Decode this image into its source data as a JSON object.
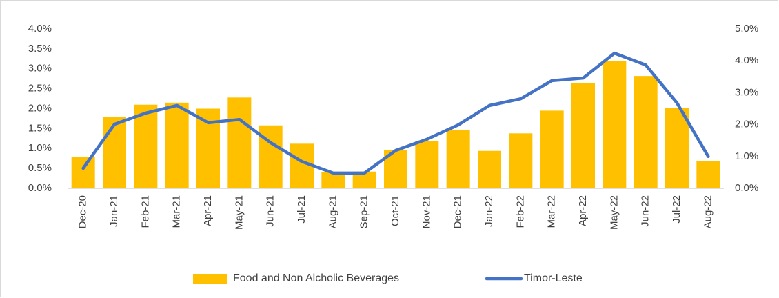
{
  "chart_data": {
    "type": "bar_line",
    "categories": [
      "Dec-20",
      "Jan-21",
      "Feb-21",
      "Mar-21",
      "Apr-21",
      "May-21",
      "Jun-21",
      "Jul-21",
      "Aug-21",
      "Sep-21",
      "Oct-21",
      "Nov-21",
      "Dec-21",
      "Jan-22",
      "Feb-22",
      "Mar-22",
      "Apr-22",
      "May-22",
      "Jun-22",
      "Jul-22",
      "Aug-22"
    ],
    "series": [
      {
        "name": "Food and Non Alcholic Beverages",
        "type": "bar",
        "color": "#FFC000",
        "axis": "y",
        "values": [
          0.78,
          1.8,
          2.1,
          2.15,
          2.0,
          2.28,
          1.58,
          1.12,
          0.4,
          0.42,
          0.97,
          1.18,
          1.47,
          0.94,
          1.38,
          1.95,
          2.65,
          3.2,
          2.82,
          2.02,
          0.68
        ]
      },
      {
        "name": "Timor-Leste",
        "type": "line",
        "color": "#4472C4",
        "axis": "y2",
        "values": [
          0.63,
          2.01,
          2.36,
          2.6,
          2.06,
          2.16,
          1.43,
          0.84,
          0.48,
          0.48,
          1.19,
          1.54,
          1.99,
          2.6,
          2.81,
          3.38,
          3.46,
          4.24,
          3.87,
          2.68,
          1.0
        ]
      }
    ],
    "ylim": [
      0,
      4
    ],
    "yticks": [
      {
        "value": 0,
        "label": "0.0%"
      },
      {
        "value": 0.5,
        "label": "0.5%"
      },
      {
        "value": 1,
        "label": "1.0%"
      },
      {
        "value": 1.5,
        "label": "1.5%"
      },
      {
        "value": 2,
        "label": "2.0%"
      },
      {
        "value": 2.5,
        "label": "2.5%"
      },
      {
        "value": 3,
        "label": "3.0%"
      },
      {
        "value": 3.5,
        "label": "3.5%"
      },
      {
        "value": 4,
        "label": "4.0%"
      }
    ],
    "y2lim": [
      0,
      5
    ],
    "y2ticks": [
      {
        "value": 0,
        "label": "0.0%"
      },
      {
        "value": 1,
        "label": "1.0%"
      },
      {
        "value": 2,
        "label": "2.0%"
      },
      {
        "value": 3,
        "label": "3.0%"
      },
      {
        "value": 4,
        "label": "4.0%"
      },
      {
        "value": 5,
        "label": "5.0%"
      }
    ],
    "grid": false,
    "legend": "bottom"
  }
}
